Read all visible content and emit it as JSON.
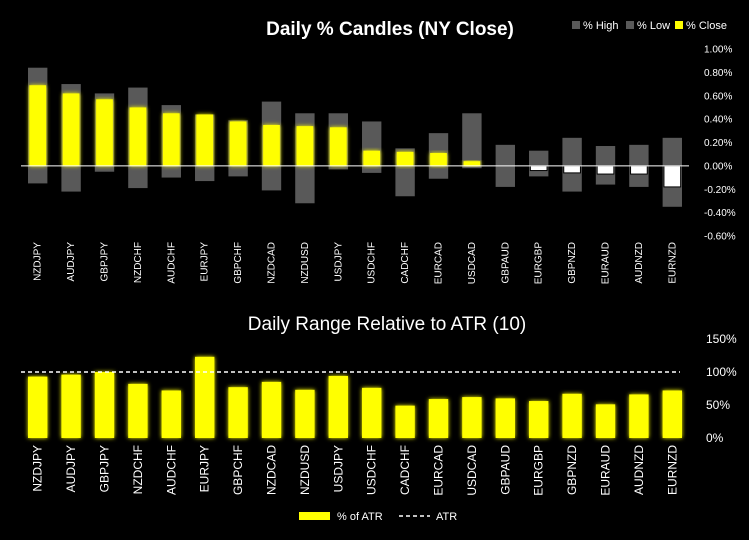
{
  "colors": {
    "background": "#000000",
    "high_low": "#595959",
    "close_pos": "#ffff00",
    "close_neg": "#ffffff",
    "text": "#ffffff",
    "axis_line": "#ffffff",
    "atr_line": "#ffffff"
  },
  "chart_data": [
    {
      "type": "bar",
      "title": "Daily % Candles (NY Close)",
      "legend": {
        "placement": "top-right",
        "items": [
          {
            "label": "% High",
            "color": "#595959"
          },
          {
            "label": "% Low",
            "color": "#595959"
          },
          {
            "label": "% Close",
            "color": "#ffff00"
          }
        ]
      },
      "categories": [
        "NZDJPY",
        "AUDJPY",
        "GBPJPY",
        "NZDCHF",
        "AUDCHF",
        "EURJPY",
        "GBPCHF",
        "NZDCAD",
        "NZDUSD",
        "USDJPY",
        "USDCHF",
        "CADCHF",
        "EURCAD",
        "USDCAD",
        "GBPAUD",
        "EURGBP",
        "GBPNZD",
        "EURAUD",
        "AUDNZD",
        "EURNZD"
      ],
      "series": [
        {
          "name": "% High",
          "values": [
            0.84,
            0.7,
            0.62,
            0.67,
            0.52,
            0.44,
            0.39,
            0.55,
            0.45,
            0.45,
            0.38,
            0.15,
            0.28,
            0.45,
            0.18,
            0.13,
            0.24,
            0.17,
            0.18,
            0.24
          ]
        },
        {
          "name": "% Low",
          "values": [
            -0.15,
            -0.22,
            -0.05,
            -0.19,
            -0.1,
            -0.13,
            -0.09,
            -0.21,
            -0.32,
            -0.03,
            -0.06,
            -0.26,
            -0.11,
            -0.02,
            -0.18,
            -0.09,
            -0.22,
            -0.16,
            -0.18,
            -0.35
          ]
        },
        {
          "name": "% Close",
          "values": [
            0.69,
            0.62,
            0.57,
            0.5,
            0.45,
            0.44,
            0.38,
            0.35,
            0.34,
            0.33,
            0.13,
            0.12,
            0.11,
            0.04,
            0.0,
            -0.04,
            -0.06,
            -0.07,
            -0.07,
            -0.18
          ]
        }
      ],
      "ylim": [
        -0.6,
        1.0
      ],
      "yticks": [
        "1.00%",
        "0.80%",
        "0.60%",
        "0.40%",
        "0.20%",
        "0.00%",
        "-0.20%",
        "-0.40%",
        "-0.60%"
      ]
    },
    {
      "type": "bar",
      "title": "Daily Range Relative to ATR (10)",
      "legend": {
        "placement": "bottom-center",
        "items": [
          {
            "label": "% of ATR",
            "color": "#ffff00"
          },
          {
            "label": "ATR",
            "color": "#ffffff"
          }
        ]
      },
      "categories": [
        "NZDJPY",
        "AUDJPY",
        "GBPJPY",
        "NZDCHF",
        "AUDCHF",
        "EURJPY",
        "GBPCHF",
        "NZDCAD",
        "NZDUSD",
        "USDJPY",
        "USDCHF",
        "CADCHF",
        "EURCAD",
        "USDCAD",
        "GBPAUD",
        "EURGBP",
        "GBPNZD",
        "EURAUD",
        "AUDNZD",
        "EURNZD"
      ],
      "series": [
        {
          "name": "% of ATR",
          "values": [
            93,
            96,
            100,
            82,
            72,
            123,
            77,
            85,
            73,
            94,
            76,
            49,
            59,
            62,
            60,
            56,
            67,
            51,
            66,
            72
          ]
        }
      ],
      "atr_level": 100,
      "ylim": [
        0,
        150
      ],
      "yticks": [
        "150%",
        "100%",
        "50%",
        "0%"
      ]
    }
  ]
}
